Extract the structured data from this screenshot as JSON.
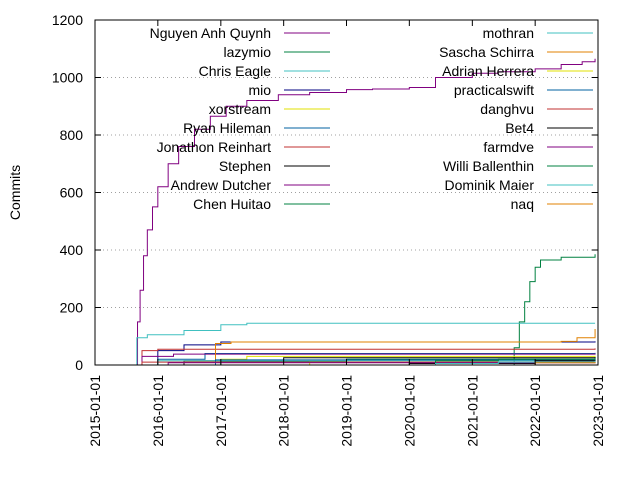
{
  "chart_data": {
    "type": "line",
    "title": "",
    "xlabel": "",
    "ylabel": "Commits",
    "ylim": [
      0,
      1200
    ],
    "xlim": [
      "2015-01-01",
      "2023-01-01"
    ],
    "grid": "horizontal-dotted",
    "legend_placement": "top-inside-two-columns",
    "x_ticks": [
      "2015-01-01",
      "2016-01-01",
      "2017-01-01",
      "2018-01-01",
      "2019-01-01",
      "2020-01-01",
      "2021-01-01",
      "2022-01-01",
      "2023-01-01"
    ],
    "y_ticks": [
      0,
      200,
      400,
      600,
      800,
      1000,
      1200
    ],
    "series": [
      {
        "name": "Nguyen Anh Quynh",
        "color": "#800080",
        "points": [
          [
            "2015-08-25",
            0
          ],
          [
            "2015-09-05",
            150
          ],
          [
            "2015-09-20",
            260
          ],
          [
            "2015-10-10",
            380
          ],
          [
            "2015-11-01",
            470
          ],
          [
            "2015-12-01",
            550
          ],
          [
            "2016-01-01",
            620
          ],
          [
            "2016-03-01",
            700
          ],
          [
            "2016-05-01",
            760
          ],
          [
            "2016-08-01",
            820
          ],
          [
            "2016-11-01",
            865
          ],
          [
            "2017-02-01",
            900
          ],
          [
            "2017-06-01",
            920
          ],
          [
            "2017-12-01",
            940
          ],
          [
            "2018-06-01",
            948
          ],
          [
            "2019-01-01",
            958
          ],
          [
            "2019-06-01",
            960
          ],
          [
            "2020-01-01",
            965
          ],
          [
            "2020-06-01",
            1000
          ],
          [
            "2021-01-01",
            1015
          ],
          [
            "2021-06-01",
            1020
          ],
          [
            "2022-01-01",
            1030
          ],
          [
            "2022-06-01",
            1045
          ],
          [
            "2022-10-01",
            1055
          ],
          [
            "2022-12-15",
            1065
          ]
        ]
      },
      {
        "name": "lazymio",
        "color": "#008040",
        "points": [
          [
            "2021-08-01",
            0
          ],
          [
            "2021-09-01",
            60
          ],
          [
            "2021-10-01",
            150
          ],
          [
            "2021-11-01",
            220
          ],
          [
            "2021-12-01",
            290
          ],
          [
            "2022-01-01",
            340
          ],
          [
            "2022-02-01",
            365
          ],
          [
            "2022-06-01",
            375
          ],
          [
            "2022-12-15",
            385
          ]
        ]
      },
      {
        "name": "Chris Eagle",
        "color": "#40c0c0",
        "points": [
          [
            "2015-08-25",
            0
          ],
          [
            "2015-09-01",
            95
          ],
          [
            "2015-11-01",
            105
          ],
          [
            "2016-06-01",
            120
          ],
          [
            "2017-01-01",
            140
          ],
          [
            "2017-06-01",
            145
          ],
          [
            "2022-12-15",
            145
          ]
        ]
      },
      {
        "name": "mio",
        "color": "#000080",
        "points": [
          [
            "2015-10-01",
            0
          ],
          [
            "2016-01-01",
            50
          ],
          [
            "2016-06-01",
            70
          ],
          [
            "2017-01-01",
            80
          ],
          [
            "2022-12-15",
            82
          ]
        ]
      },
      {
        "name": "xorstream",
        "color": "#e0e000",
        "points": [
          [
            "2016-01-01",
            0
          ],
          [
            "2016-06-01",
            10
          ],
          [
            "2017-01-01",
            20
          ],
          [
            "2017-06-01",
            30
          ],
          [
            "2022-12-15",
            32
          ]
        ]
      },
      {
        "name": "Ryan Hileman",
        "color": "#0060a0",
        "points": [
          [
            "2015-10-01",
            0
          ],
          [
            "2016-01-01",
            20
          ],
          [
            "2016-10-01",
            40
          ],
          [
            "2022-12-15",
            42
          ]
        ]
      },
      {
        "name": "Jonathon Reinhart",
        "color": "#c03030",
        "points": [
          [
            "2015-09-01",
            0
          ],
          [
            "2015-10-01",
            50
          ],
          [
            "2016-01-01",
            55
          ],
          [
            "2022-12-15",
            58
          ]
        ]
      },
      {
        "name": "Stephen",
        "color": "#000000",
        "points": [
          [
            "2015-11-01",
            0
          ],
          [
            "2016-06-01",
            15
          ],
          [
            "2018-01-01",
            25
          ],
          [
            "2022-12-15",
            28
          ]
        ]
      },
      {
        "name": "Andrew Dutcher",
        "color": "#800080",
        "points": [
          [
            "2015-09-01",
            0
          ],
          [
            "2015-10-01",
            30
          ],
          [
            "2016-04-01",
            38
          ],
          [
            "2022-12-15",
            40
          ]
        ]
      },
      {
        "name": "Chen Huitao",
        "color": "#008040",
        "points": [
          [
            "2016-01-01",
            0
          ],
          [
            "2017-01-01",
            12
          ],
          [
            "2019-01-01",
            20
          ],
          [
            "2022-12-15",
            22
          ]
        ]
      },
      {
        "name": "mothran",
        "color": "#40c0c0",
        "points": [
          [
            "2015-09-01",
            0
          ],
          [
            "2016-01-01",
            15
          ],
          [
            "2022-12-15",
            16
          ]
        ]
      },
      {
        "name": "Sascha Schirra",
        "color": "#e08000",
        "points": [
          [
            "2016-10-01",
            0
          ],
          [
            "2016-12-01",
            75
          ],
          [
            "2017-03-01",
            80
          ],
          [
            "2022-06-01",
            82
          ],
          [
            "2022-09-01",
            95
          ],
          [
            "2022-12-15",
            125
          ]
        ]
      },
      {
        "name": "Adrian Herrera",
        "color": "#e0e000",
        "points": [
          [
            "2018-01-01",
            0
          ],
          [
            "2018-06-01",
            10
          ],
          [
            "2022-12-15",
            12
          ]
        ]
      },
      {
        "name": "practicalswift",
        "color": "#0060a0",
        "points": [
          [
            "2016-10-01",
            0
          ],
          [
            "2016-12-01",
            18
          ],
          [
            "2022-12-15",
            19
          ]
        ]
      },
      {
        "name": "danghvu",
        "color": "#c03030",
        "points": [
          [
            "2015-09-01",
            0
          ],
          [
            "2015-10-01",
            10
          ],
          [
            "2022-12-15",
            12
          ]
        ]
      },
      {
        "name": "Bet4",
        "color": "#000000",
        "points": [
          [
            "2019-01-01",
            0
          ],
          [
            "2020-01-01",
            5
          ],
          [
            "2022-01-01",
            15
          ],
          [
            "2022-12-15",
            18
          ]
        ]
      },
      {
        "name": "farmdve",
        "color": "#800080",
        "points": [
          [
            "2016-01-01",
            0
          ],
          [
            "2016-03-01",
            8
          ],
          [
            "2022-12-15",
            9
          ]
        ]
      },
      {
        "name": "Willi Ballenthin",
        "color": "#008040",
        "points": [
          [
            "2020-01-01",
            0
          ],
          [
            "2020-06-01",
            15
          ],
          [
            "2021-06-01",
            20
          ],
          [
            "2022-12-15",
            25
          ]
        ]
      },
      {
        "name": "Dominik Maier",
        "color": "#40c0c0",
        "points": [
          [
            "2019-06-01",
            0
          ],
          [
            "2020-06-01",
            5
          ],
          [
            "2021-06-01",
            10
          ],
          [
            "2022-12-15",
            15
          ]
        ]
      },
      {
        "name": "naq",
        "color": "#e08000",
        "points": [
          [
            "2021-06-01",
            0
          ],
          [
            "2022-01-01",
            8
          ],
          [
            "2022-12-15",
            10
          ]
        ]
      }
    ]
  }
}
